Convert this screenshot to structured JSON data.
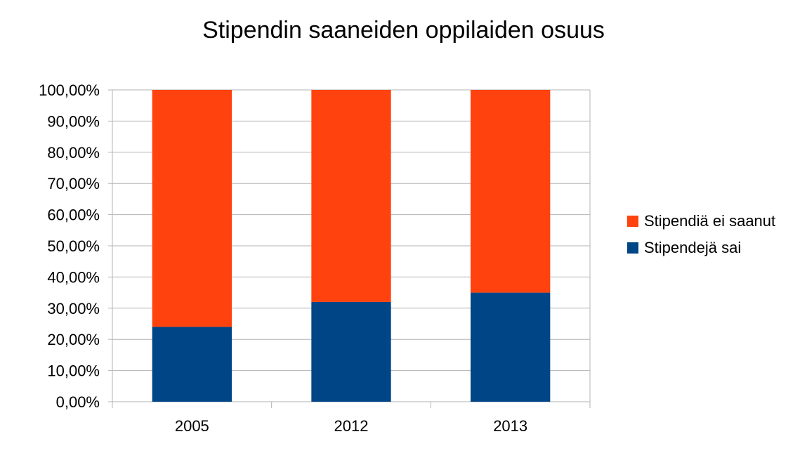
{
  "chart_data": {
    "type": "bar",
    "stacked": true,
    "title": "Stipendin saaneiden oppilaiden osuus",
    "categories": [
      "2005",
      "2012",
      "2013"
    ],
    "series": [
      {
        "name": "Stipendejä sai",
        "values": [
          24.0,
          32.0,
          35.0
        ],
        "color": "#004586"
      },
      {
        "name": "Stipendiä ei saanut",
        "values": [
          76.0,
          68.0,
          65.0
        ],
        "color": "#ff420e"
      }
    ],
    "ylim": [
      0,
      100
    ],
    "yticks": [
      "0,00%",
      "10,00%",
      "20,00%",
      "30,00%",
      "40,00%",
      "50,00%",
      "60,00%",
      "70,00%",
      "80,00%",
      "90,00%",
      "100,00%"
    ],
    "grid": true,
    "legend_position": "right"
  },
  "legend": [
    {
      "label": "Stipendiä ei saanut",
      "color": "#ff420e"
    },
    {
      "label": "Stipendejä sai",
      "color": "#004586"
    }
  ]
}
